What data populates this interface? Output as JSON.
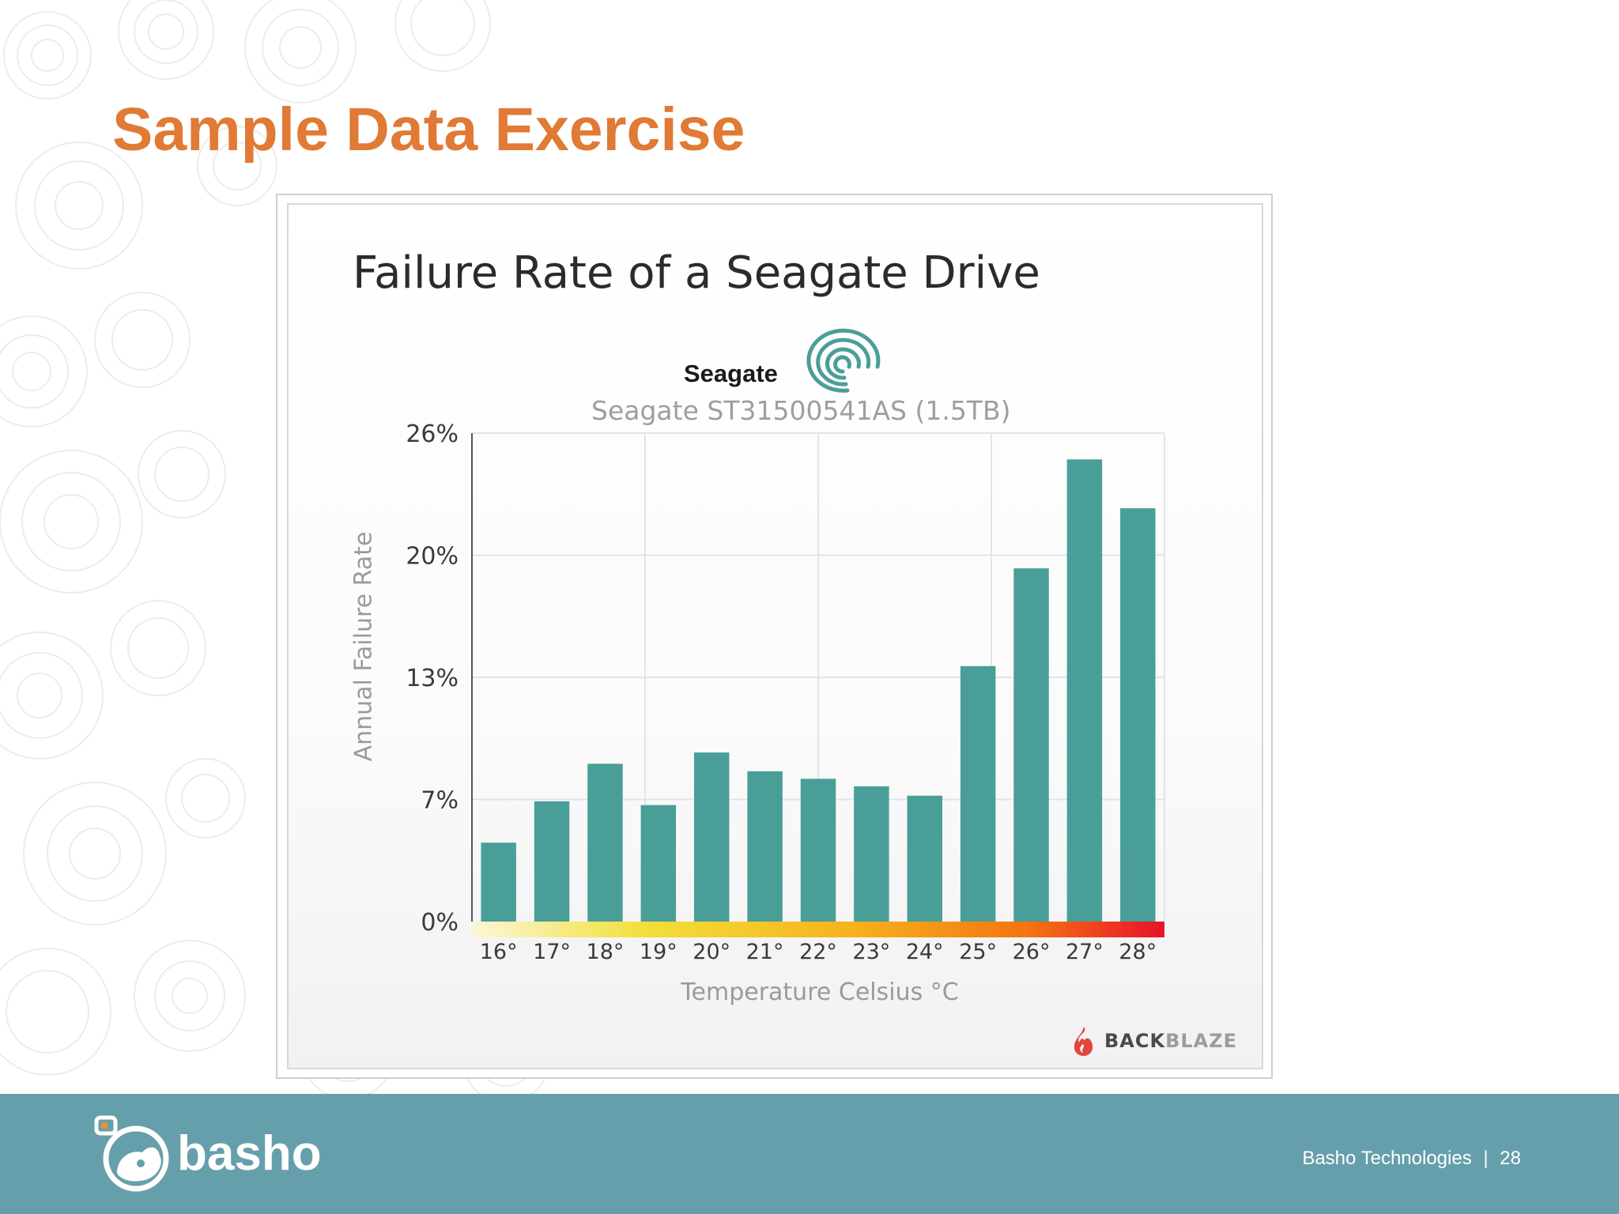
{
  "slide": {
    "title": "Sample Data Exercise",
    "footer": {
      "company": "Basho Technologies",
      "separator": "|",
      "page_number": "28",
      "logo_word": "basho"
    }
  },
  "chart_data": {
    "type": "bar",
    "title": "Failure Rate of a Seagate Drive",
    "brand": "Seagate",
    "subtitle": "Seagate ST31500541AS (1.5TB)",
    "xlabel": "Temperature Celsius °C",
    "ylabel": "Annual Failure Rate",
    "credit": {
      "bold": "BACK",
      "light": "BLAZE"
    },
    "categories": [
      "16°",
      "17°",
      "18°",
      "19°",
      "20°",
      "21°",
      "22°",
      "23°",
      "24°",
      "25°",
      "26°",
      "27°",
      "28°"
    ],
    "values": [
      4.2,
      6.4,
      8.4,
      6.2,
      9.0,
      8.0,
      7.6,
      7.2,
      6.7,
      13.6,
      18.8,
      24.6,
      22.0
    ],
    "yticks": [
      "0%",
      "7%",
      "13%",
      "20%",
      "26%"
    ],
    "ylim": [
      0,
      26
    ],
    "grid": true,
    "bar_color": "#4a9e98",
    "temperature_gradient": [
      "#fbf7d6",
      "#f2df3a",
      "#f6b21c",
      "#f47512",
      "#e8122a"
    ]
  }
}
